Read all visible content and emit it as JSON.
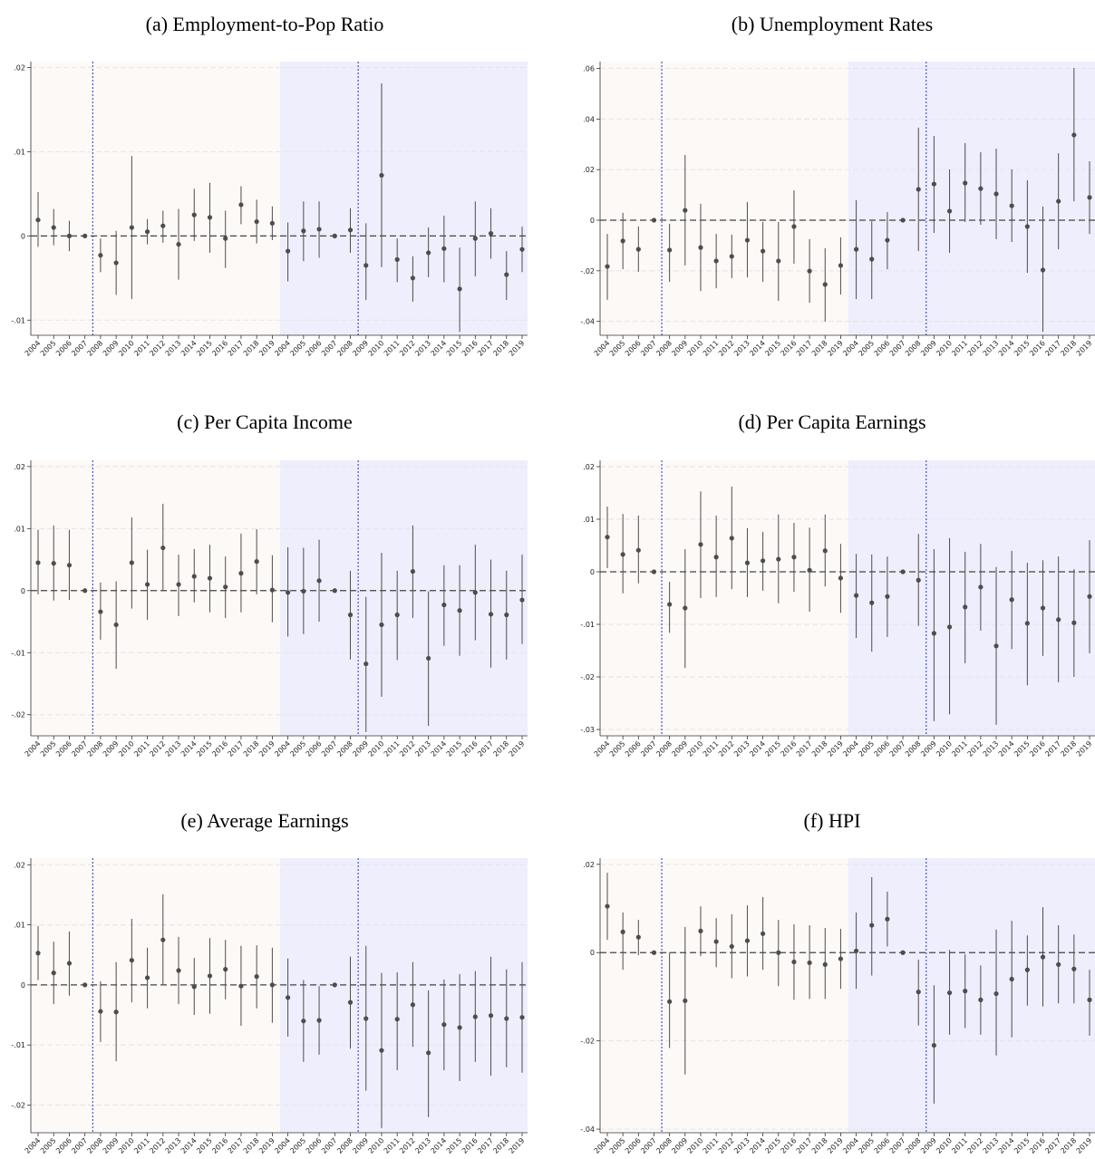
{
  "chart_data": [
    {
      "type": "errorbar",
      "title": "(a) Employment-to-Pop Ratio",
      "categories": [
        "2004",
        "2005",
        "2006",
        "2007",
        "2008",
        "2009",
        "2010",
        "2011",
        "2012",
        "2013",
        "2014",
        "2015",
        "2016",
        "2017",
        "2018",
        "2019",
        "2004",
        "2005",
        "2006",
        "2007",
        "2008",
        "2009",
        "2010",
        "2011",
        "2012",
        "2013",
        "2014",
        "2015",
        "2016",
        "2017",
        "2018",
        "2019"
      ],
      "values": [
        0.0019,
        0.001,
        0,
        0,
        -0.0023,
        -0.0032,
        0.001,
        0.0005,
        0.0012,
        -0.001,
        0.0025,
        0.0022,
        -0.0003,
        0.0037,
        0.0017,
        0.0015,
        -0.0018,
        0.0006,
        0.0008,
        0,
        0.0007,
        -0.0035,
        0.0072,
        -0.0028,
        -0.005,
        -0.002,
        -0.0015,
        -0.0063,
        -0.0003,
        0.0003,
        -0.0046,
        -0.0016
      ],
      "ci_low": [
        -0.0013,
        -0.0011,
        -0.0018,
        null,
        -0.0043,
        -0.007,
        -0.0075,
        -0.001,
        -0.0008,
        -0.0052,
        -0.0006,
        -0.002,
        -0.0038,
        0.0014,
        -0.0009,
        -0.0005,
        -0.0054,
        -0.003,
        -0.0026,
        null,
        -0.002,
        -0.0076,
        -0.0037,
        -0.0055,
        -0.0078,
        -0.0049,
        -0.0055,
        -0.0114,
        -0.0048,
        -0.0027,
        -0.0076,
        -0.0043
      ],
      "ci_high": [
        0.0052,
        0.0032,
        0.0018,
        null,
        -0.0003,
        0.0006,
        0.0095,
        0.002,
        0.003,
        0.0032,
        0.0056,
        0.0063,
        0.003,
        0.0059,
        0.0043,
        0.0035,
        0.0016,
        0.0041,
        0.0041,
        null,
        0.0033,
        0.0015,
        0.0181,
        -0.0003,
        -0.0024,
        0.001,
        0.0024,
        -0.0014,
        0.0041,
        0.0033,
        -0.0018,
        0.0011
      ],
      "ylim": [
        -0.0118,
        0.0207
      ],
      "yticks": [
        {
          "value": -0.01,
          "label": "-.01"
        },
        0,
        {
          "value": 0.01,
          "label": ".01"
        },
        {
          "value": 0.02,
          "label": ".02"
        }
      ],
      "color": "#4d4d4d",
      "region_colors": [
        "#fdf9f7",
        "#eeeefc"
      ],
      "grid": true
    },
    {
      "type": "errorbar",
      "title": "(b) Unemployment Rates",
      "categories": [
        "2004",
        "2005",
        "2006",
        "2007",
        "2008",
        "2009",
        "2010",
        "2011",
        "2012",
        "2013",
        "2014",
        "2015",
        "2016",
        "2017",
        "2018",
        "2019",
        "2004",
        "2005",
        "2006",
        "2007",
        "2008",
        "2009",
        "2010",
        "2011",
        "2012",
        "2013",
        "2014",
        "2015",
        "2016",
        "2017",
        "2018",
        "2019"
      ],
      "values": [
        -0.0183,
        -0.0082,
        -0.0115,
        0,
        -0.0118,
        0.0039,
        -0.0108,
        -0.0161,
        -0.0143,
        -0.0079,
        -0.0122,
        -0.0161,
        -0.0025,
        -0.0201,
        -0.0254,
        -0.0179,
        -0.0115,
        -0.0154,
        -0.0079,
        0,
        0.0122,
        0.0143,
        0.0036,
        0.0147,
        0.0125,
        0.0104,
        0.0057,
        -0.0025,
        -0.0197,
        0.0075,
        0.0337,
        0.009
      ],
      "ci_low": [
        -0.0315,
        -0.0194,
        -0.0204,
        null,
        -0.0244,
        -0.0179,
        -0.028,
        -0.0269,
        -0.0229,
        -0.0226,
        -0.0244,
        -0.0319,
        -0.0172,
        -0.0326,
        -0.0401,
        -0.0294,
        -0.0312,
        -0.0312,
        -0.0194,
        null,
        -0.0122,
        -0.005,
        -0.0129,
        -0.0007,
        -0.0018,
        -0.0075,
        -0.0086,
        -0.0208,
        -0.0441,
        -0.0115,
        0.0075,
        -0.0054
      ],
      "ci_high": [
        -0.0054,
        0.0029,
        -0.0025,
        null,
        -0.0014,
        0.0258,
        0.0065,
        -0.0054,
        -0.0057,
        0.0072,
        -0.0007,
        -0.0007,
        0.0118,
        -0.0075,
        -0.0111,
        -0.0068,
        0.0079,
        -0.0004,
        0.0032,
        null,
        0.0366,
        0.0333,
        0.0201,
        0.0305,
        0.0269,
        0.0283,
        0.0201,
        0.0158,
        0.0054,
        0.0265,
        0.0602,
        0.0233
      ],
      "ylim": [
        -0.0455,
        0.0627
      ],
      "yticks": [
        {
          "value": -0.04,
          "label": "-.04"
        },
        {
          "value": -0.02,
          "label": "-.02"
        },
        0,
        {
          "value": 0.02,
          "label": ".02"
        },
        {
          "value": 0.04,
          "label": ".04"
        },
        {
          "value": 0.06,
          "label": ".06"
        }
      ],
      "color": "#4d4d4d",
      "region_colors": [
        "#fdf9f7",
        "#eeeefc"
      ],
      "grid": true
    },
    {
      "type": "errorbar",
      "title": "(c) Per Capita Income",
      "categories": [
        "2004",
        "2005",
        "2006",
        "2007",
        "2008",
        "2009",
        "2010",
        "2011",
        "2012",
        "2013",
        "2014",
        "2015",
        "2016",
        "2017",
        "2018",
        "2019",
        "2004",
        "2005",
        "2006",
        "2007",
        "2008",
        "2009",
        "2010",
        "2011",
        "2012",
        "2013",
        "2014",
        "2015",
        "2016",
        "2017",
        "2018",
        "2019"
      ],
      "values": [
        0.0045,
        0.0044,
        0.0041,
        0,
        -0.0034,
        -0.0055,
        0.0045,
        0.001,
        0.0069,
        0.001,
        0.0023,
        0.002,
        0.0006,
        0.0028,
        0.0047,
        0.0001,
        -0.0003,
        -0.0001,
        0.0016,
        0,
        -0.0039,
        -0.0118,
        -0.0055,
        -0.0039,
        0.0031,
        -0.0109,
        -0.0023,
        -0.0032,
        -0.0003,
        -0.0038,
        -0.0039,
        -0.0015
      ],
      "ci_low": [
        -0.0006,
        -0.0016,
        -0.0015,
        null,
        -0.0079,
        -0.0126,
        -0.0029,
        -0.0047,
        -0.0001,
        -0.0041,
        -0.0019,
        -0.0035,
        -0.0044,
        -0.0035,
        -0.0006,
        -0.0051,
        -0.0074,
        -0.007,
        -0.005,
        null,
        -0.0111,
        -0.0228,
        -0.0171,
        -0.0112,
        -0.0044,
        -0.0218,
        -0.0089,
        -0.0105,
        -0.008,
        -0.0124,
        -0.0111,
        -0.0086
      ],
      "ci_high": [
        0.0098,
        0.0105,
        0.0098,
        null,
        0.0013,
        0.0015,
        0.0118,
        0.0066,
        0.014,
        0.0058,
        0.0067,
        0.0074,
        0.0055,
        0.0092,
        0.0099,
        0.0057,
        0.007,
        0.0069,
        0.0082,
        null,
        0.0032,
        -0.001,
        0.0061,
        0.0032,
        0.0105,
        -0.0001,
        0.0041,
        0.0041,
        0.0074,
        0.005,
        0.0032,
        0.0058
      ],
      "ylim": [
        -0.0234,
        0.021
      ],
      "yticks": [
        {
          "value": -0.02,
          "label": "-.02"
        },
        {
          "value": -0.01,
          "label": "-.01"
        },
        0,
        {
          "value": 0.01,
          "label": ".01"
        },
        {
          "value": 0.02,
          "label": ".02"
        }
      ],
      "color": "#4d4d4d",
      "region_colors": [
        "#fdf9f7",
        "#eeeefc"
      ],
      "grid": true
    },
    {
      "type": "errorbar",
      "title": "(d) Per Capita Earnings",
      "categories": [
        "2004",
        "2005",
        "2006",
        "2007",
        "2008",
        "2009",
        "2010",
        "2011",
        "2012",
        "2013",
        "2014",
        "2015",
        "2016",
        "2017",
        "2018",
        "2019",
        "2004",
        "2005",
        "2006",
        "2007",
        "2008",
        "2009",
        "2010",
        "2011",
        "2012",
        "2013",
        "2014",
        "2015",
        "2016",
        "2017",
        "2018",
        "2019"
      ],
      "values": [
        0.0066,
        0.0033,
        0.0041,
        0,
        -0.0062,
        -0.0069,
        0.0052,
        0.0028,
        0.0064,
        0.0017,
        0.0021,
        0.0024,
        0.0028,
        0.0003,
        0.004,
        -0.0012,
        -0.0045,
        -0.0059,
        -0.0047,
        0,
        -0.0016,
        -0.0117,
        -0.0105,
        -0.0067,
        -0.0029,
        -0.0141,
        -0.0053,
        -0.0098,
        -0.0069,
        -0.0091,
        -0.0097,
        -0.0047
      ],
      "ci_low": [
        0.0007,
        -0.0041,
        -0.0022,
        null,
        -0.0116,
        -0.0183,
        -0.005,
        -0.0048,
        -0.0033,
        -0.0048,
        -0.0036,
        -0.006,
        -0.0038,
        -0.0076,
        -0.0028,
        -0.0078,
        -0.0126,
        -0.0152,
        -0.0124,
        null,
        -0.0103,
        -0.0284,
        -0.0271,
        -0.0174,
        -0.0112,
        -0.0291,
        -0.0147,
        -0.0216,
        -0.016,
        -0.021,
        -0.02,
        -0.0155
      ],
      "ci_high": [
        0.0124,
        0.011,
        0.0107,
        null,
        -0.0019,
        0.0043,
        0.0153,
        0.0107,
        0.0162,
        0.0083,
        0.0076,
        0.0109,
        0.0093,
        0.0084,
        0.0109,
        0.0053,
        0.0034,
        0.0033,
        0.0029,
        null,
        0.0072,
        0.0043,
        0.0064,
        0.0038,
        0.0053,
        0.0009,
        0.004,
        0.0017,
        0.0022,
        0.0029,
        0.0005,
        0.006
      ],
      "ylim": [
        -0.0312,
        0.0212
      ],
      "yticks": [
        {
          "value": -0.03,
          "label": "-.03"
        },
        {
          "value": -0.02,
          "label": "-.02"
        },
        {
          "value": -0.01,
          "label": "-.01"
        },
        0,
        {
          "value": 0.01,
          "label": ".01"
        },
        {
          "value": 0.02,
          "label": ".02"
        }
      ],
      "color": "#4d4d4d",
      "region_colors": [
        "#fdf9f7",
        "#eeeefc"
      ],
      "grid": true
    },
    {
      "type": "errorbar",
      "title": "(e) Average Earnings",
      "categories": [
        "2004",
        "2005",
        "2006",
        "2007",
        "2008",
        "2009",
        "2010",
        "2011",
        "2012",
        "2013",
        "2014",
        "2015",
        "2016",
        "2017",
        "2018",
        "2019",
        "2004",
        "2005",
        "2006",
        "2007",
        "2008",
        "2009",
        "2010",
        "2011",
        "2012",
        "2013",
        "2014",
        "2015",
        "2016",
        "2017",
        "2018",
        "2019"
      ],
      "values": [
        0.0053,
        0.002,
        0.0036,
        0,
        -0.0044,
        -0.0045,
        0.0041,
        0.0012,
        0.0075,
        0.0024,
        -0.0003,
        0.0015,
        0.0026,
        -0.0002,
        0.0014,
        0,
        -0.0021,
        -0.006,
        -0.0059,
        0,
        -0.0029,
        -0.0056,
        -0.0109,
        -0.0057,
        -0.0033,
        -0.0113,
        -0.0066,
        -0.0071,
        -0.0053,
        -0.0051,
        -0.0056,
        -0.0054
      ],
      "ci_low": [
        0.0008,
        -0.0032,
        -0.0018,
        null,
        -0.0095,
        -0.0127,
        -0.0029,
        -0.0039,
        0,
        -0.0032,
        -0.005,
        -0.0048,
        -0.0024,
        -0.0068,
        -0.0039,
        -0.0063,
        -0.0086,
        -0.0128,
        -0.0116,
        null,
        -0.0106,
        -0.0176,
        -0.0238,
        -0.0142,
        -0.0103,
        -0.022,
        -0.0142,
        -0.016,
        -0.0128,
        -0.0151,
        -0.0137,
        -0.0146
      ],
      "ci_high": [
        0.0098,
        0.0072,
        0.0089,
        null,
        0.0006,
        0.0038,
        0.011,
        0.0062,
        0.0151,
        0.008,
        0.0045,
        0.0078,
        0.0075,
        0.0065,
        0.0066,
        0.0062,
        0.0044,
        0.0008,
        -0.0002,
        null,
        0.0047,
        0.0065,
        0.002,
        0.0021,
        0.0038,
        -0.0009,
        0.0009,
        0.0018,
        0.0023,
        0.0047,
        0.0026,
        0.0038
      ],
      "ylim": [
        -0.0246,
        0.0211
      ],
      "yticks": [
        {
          "value": -0.02,
          "label": "-.02"
        },
        {
          "value": -0.01,
          "label": "-.01"
        },
        0,
        {
          "value": 0.01,
          "label": ".01"
        },
        {
          "value": 0.02,
          "label": ".02"
        }
      ],
      "color": "#4d4d4d",
      "region_colors": [
        "#fdf9f7",
        "#eeeefc"
      ],
      "grid": true
    },
    {
      "type": "errorbar",
      "title": "(f) HPI",
      "categories": [
        "2004",
        "2005",
        "2006",
        "2007",
        "2008",
        "2009",
        "2010",
        "2011",
        "2012",
        "2013",
        "2014",
        "2015",
        "2016",
        "2017",
        "2018",
        "2019",
        "2004",
        "2005",
        "2006",
        "2007",
        "2008",
        "2009",
        "2010",
        "2011",
        "2012",
        "2013",
        "2014",
        "2015",
        "2016",
        "2017",
        "2018",
        "2019"
      ],
      "values": [
        0.0105,
        0.0047,
        0.0035,
        0,
        -0.0111,
        -0.0109,
        0.0049,
        0.0025,
        0.0014,
        0.0027,
        0.0043,
        0,
        -0.0021,
        -0.0023,
        -0.0027,
        -0.0014,
        0.0004,
        0.0062,
        0.0076,
        0,
        -0.0089,
        -0.021,
        -0.0091,
        -0.0087,
        -0.0107,
        -0.0093,
        -0.006,
        -0.0039,
        -0.001,
        -0.0027,
        -0.0037,
        -0.0107
      ],
      "ci_low": [
        0.0029,
        -0.0039,
        -0.0006,
        null,
        -0.0216,
        -0.0276,
        -0.0008,
        -0.0033,
        -0.0058,
        -0.0054,
        -0.0039,
        -0.0076,
        -0.0107,
        -0.0105,
        -0.0105,
        -0.0082,
        -0.0082,
        -0.0052,
        0.0014,
        null,
        -0.0165,
        -0.0342,
        -0.0186,
        -0.0171,
        -0.0186,
        -0.0233,
        -0.0192,
        -0.012,
        -0.0122,
        -0.0115,
        -0.0115,
        -0.0188
      ],
      "ci_high": [
        0.0181,
        0.0091,
        0.0074,
        null,
        0,
        0.0058,
        0.0105,
        0.0078,
        0.0087,
        0.0107,
        0.0126,
        0.0074,
        0.0064,
        0.0062,
        0.0056,
        0.0054,
        0.0091,
        0.0171,
        0.0138,
        null,
        -0.0016,
        -0.0074,
        0.0006,
        -0.0004,
        -0.0029,
        0.0052,
        0.0072,
        0.0039,
        0.0103,
        0.0062,
        0.0041,
        -0.0039
      ],
      "ylim": [
        -0.0408,
        0.0214
      ],
      "yticks": [
        {
          "value": -0.04,
          "label": "-.04"
        },
        {
          "value": -0.02,
          "label": "-.02"
        },
        0,
        {
          "value": 0.02,
          "label": ".02"
        }
      ],
      "color": "#4d4d4d",
      "region_colors": [
        "#fdf9f7",
        "#eeeefc"
      ],
      "grid": true
    }
  ]
}
